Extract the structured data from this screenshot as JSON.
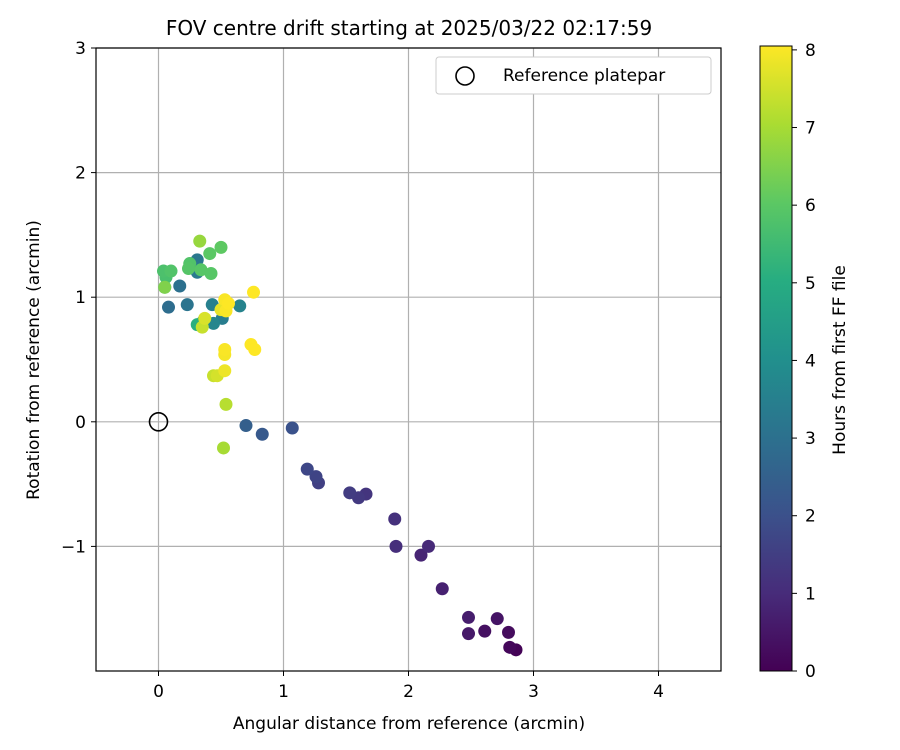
{
  "chart_data": {
    "type": "scatter",
    "title": "FOV centre drift starting at 2025/03/22 02:17:59",
    "xlabel": "Angular distance from reference (arcmin)",
    "ylabel": "Rotation from reference (arcmin)",
    "xlim": [
      -0.5,
      4.5
    ],
    "ylim": [
      -2.0,
      3.0
    ],
    "x_ticks": [
      0,
      1,
      2,
      3,
      4
    ],
    "x_tick_labels": [
      "0",
      "1",
      "2",
      "3",
      "4"
    ],
    "y_ticks": [
      -1,
      0,
      1,
      2,
      3
    ],
    "y_tick_labels": [
      "−1",
      "0",
      "1",
      "2",
      "3"
    ],
    "grid": true,
    "legend": {
      "location": "top-right",
      "entries": [
        {
          "label": "Reference platepar",
          "marker": "open-circle"
        }
      ]
    },
    "reference_point": {
      "x": 0,
      "y": 0
    },
    "colorbar": {
      "label": "Hours from first FF file",
      "colormap": "viridis",
      "range": [
        0,
        8.05
      ],
      "ticks": [
        0,
        1,
        2,
        3,
        4,
        5,
        6,
        7,
        8
      ],
      "tick_labels": [
        "0",
        "1",
        "2",
        "3",
        "4",
        "5",
        "6",
        "7",
        "8"
      ]
    },
    "points": [
      {
        "x": 2.86,
        "y": -1.83,
        "c": 0.05
      },
      {
        "x": 2.81,
        "y": -1.81,
        "c": 0.15
      },
      {
        "x": 2.8,
        "y": -1.69,
        "c": 0.25
      },
      {
        "x": 2.61,
        "y": -1.68,
        "c": 0.35
      },
      {
        "x": 2.71,
        "y": -1.58,
        "c": 0.45
      },
      {
        "x": 2.48,
        "y": -1.7,
        "c": 0.55
      },
      {
        "x": 2.48,
        "y": -1.57,
        "c": 0.65
      },
      {
        "x": 2.27,
        "y": -1.34,
        "c": 0.75
      },
      {
        "x": 2.1,
        "y": -1.07,
        "c": 0.85
      },
      {
        "x": 2.16,
        "y": -1.0,
        "c": 0.95
      },
      {
        "x": 1.9,
        "y": -1.0,
        "c": 1.05
      },
      {
        "x": 1.89,
        "y": -0.78,
        "c": 1.15
      },
      {
        "x": 1.66,
        "y": -0.58,
        "c": 1.25
      },
      {
        "x": 1.6,
        "y": -0.61,
        "c": 1.35
      },
      {
        "x": 1.53,
        "y": -0.57,
        "c": 1.45
      },
      {
        "x": 1.28,
        "y": -0.49,
        "c": 1.55
      },
      {
        "x": 1.26,
        "y": -0.44,
        "c": 1.65
      },
      {
        "x": 1.19,
        "y": -0.38,
        "c": 1.75
      },
      {
        "x": 1.07,
        "y": -0.05,
        "c": 2.05
      },
      {
        "x": 0.83,
        "y": -0.1,
        "c": 2.25
      },
      {
        "x": 0.7,
        "y": -0.03,
        "c": 2.45
      },
      {
        "x": 0.08,
        "y": 0.92,
        "c": 2.9
      },
      {
        "x": 0.17,
        "y": 1.09,
        "c": 3.0
      },
      {
        "x": 0.23,
        "y": 0.94,
        "c": 3.1
      },
      {
        "x": 0.31,
        "y": 1.3,
        "c": 3.2
      },
      {
        "x": 0.31,
        "y": 1.2,
        "c": 3.3
      },
      {
        "x": 0.51,
        "y": 0.83,
        "c": 3.4
      },
      {
        "x": 0.43,
        "y": 0.94,
        "c": 3.5
      },
      {
        "x": 0.65,
        "y": 0.93,
        "c": 3.6
      },
      {
        "x": 0.44,
        "y": 0.79,
        "c": 3.7
      },
      {
        "x": 0.36,
        "y": 0.81,
        "c": 4.2
      },
      {
        "x": 0.31,
        "y": 0.78,
        "c": 5.1
      },
      {
        "x": 0.05,
        "y": 1.08,
        "c": 5.6
      },
      {
        "x": 0.06,
        "y": 1.16,
        "c": 5.7
      },
      {
        "x": 0.04,
        "y": 1.21,
        "c": 5.75
      },
      {
        "x": 0.1,
        "y": 1.21,
        "c": 5.85
      },
      {
        "x": 0.25,
        "y": 1.27,
        "c": 5.85
      },
      {
        "x": 0.24,
        "y": 1.23,
        "c": 5.9
      },
      {
        "x": 0.34,
        "y": 1.22,
        "c": 5.95
      },
      {
        "x": 0.42,
        "y": 1.19,
        "c": 5.95
      },
      {
        "x": 0.41,
        "y": 1.35,
        "c": 6.0
      },
      {
        "x": 0.5,
        "y": 1.4,
        "c": 6.05
      },
      {
        "x": 0.05,
        "y": 1.08,
        "c": 6.5
      },
      {
        "x": 0.33,
        "y": 1.45,
        "c": 6.8
      },
      {
        "x": 0.54,
        "y": 0.14,
        "c": 7.2
      },
      {
        "x": 0.52,
        "y": -0.21,
        "c": 7.0
      },
      {
        "x": 0.44,
        "y": 0.37,
        "c": 7.4
      },
      {
        "x": 0.35,
        "y": 0.76,
        "c": 7.4
      },
      {
        "x": 0.47,
        "y": 0.37,
        "c": 7.55
      },
      {
        "x": 0.37,
        "y": 0.83,
        "c": 7.6
      },
      {
        "x": 0.5,
        "y": 0.9,
        "c": 7.8
      },
      {
        "x": 0.53,
        "y": 0.41,
        "c": 7.85
      },
      {
        "x": 0.53,
        "y": 0.54,
        "c": 7.95
      },
      {
        "x": 0.53,
        "y": 0.58,
        "c": 8.0
      },
      {
        "x": 0.54,
        "y": 0.89,
        "c": 8.0
      },
      {
        "x": 0.53,
        "y": 0.98,
        "c": 8.0
      },
      {
        "x": 0.56,
        "y": 0.95,
        "c": 8.05
      },
      {
        "x": 0.74,
        "y": 0.62,
        "c": 8.05
      },
      {
        "x": 0.77,
        "y": 0.58,
        "c": 8.05
      },
      {
        "x": 0.76,
        "y": 1.04,
        "c": 8.05
      }
    ]
  }
}
